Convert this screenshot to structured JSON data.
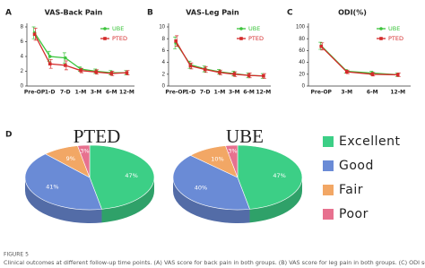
{
  "chart_data": [
    {
      "type": "line",
      "panel_label": "A",
      "title": "VAS-Back Pain",
      "categories": [
        "Pre-OP",
        "1-D",
        "7-D",
        "1-M",
        "3-M",
        "6-M",
        "12-M"
      ],
      "series": [
        {
          "name": "UBE",
          "color": "#3cc43c",
          "values": [
            7.2,
            4.0,
            3.8,
            2.3,
            2.0,
            1.8,
            1.8
          ],
          "errors": [
            0.8,
            0.7,
            0.7,
            0.3,
            0.3,
            0.3,
            0.3
          ]
        },
        {
          "name": "PTED",
          "color": "#d42a2a",
          "values": [
            7.0,
            3.0,
            2.8,
            2.1,
            1.9,
            1.7,
            1.8
          ],
          "errors": [
            0.8,
            0.6,
            0.6,
            0.3,
            0.3,
            0.3,
            0.3
          ]
        }
      ],
      "ylim": [
        0,
        8
      ],
      "yticks": [
        0,
        2,
        4,
        6,
        8
      ],
      "legend": "upper right"
    },
    {
      "type": "line",
      "panel_label": "B",
      "title": "VAS-Leg Pain",
      "categories": [
        "Pre-OP",
        "1-D",
        "7-D",
        "1-M",
        "3-M",
        "6-M",
        "12-M"
      ],
      "series": [
        {
          "name": "UBE",
          "color": "#3cc43c",
          "values": [
            7.3,
            3.6,
            2.9,
            2.4,
            2.1,
            1.8,
            1.7
          ],
          "errors": [
            1.0,
            0.6,
            0.5,
            0.4,
            0.4,
            0.4,
            0.4
          ]
        },
        {
          "name": "PTED",
          "color": "#d42a2a",
          "values": [
            7.6,
            3.4,
            2.8,
            2.3,
            2.0,
            1.8,
            1.7
          ],
          "errors": [
            0.9,
            0.5,
            0.5,
            0.4,
            0.4,
            0.4,
            0.4
          ]
        }
      ],
      "ylim": [
        0,
        10
      ],
      "yticks": [
        0,
        2,
        4,
        6,
        8,
        10
      ],
      "legend": "upper right"
    },
    {
      "type": "line",
      "panel_label": "C",
      "title": "ODI(%)",
      "categories": [
        "Pre-OP",
        "3-M",
        "6-M",
        "12-M"
      ],
      "series": [
        {
          "name": "UBE",
          "color": "#3cc43c",
          "values": [
            68,
            25,
            22,
            19
          ],
          "errors": [
            6,
            3,
            3,
            3
          ]
        },
        {
          "name": "PTED",
          "color": "#d42a2a",
          "values": [
            67,
            24,
            20,
            19
          ],
          "errors": [
            6,
            3,
            3,
            3
          ]
        }
      ],
      "ylim": [
        0,
        100
      ],
      "yticks": [
        0,
        20,
        40,
        60,
        80,
        100
      ],
      "legend": "upper right"
    },
    {
      "type": "pie",
      "panel_label": "D",
      "title": "PTED",
      "categories": [
        "Excellent",
        "Good",
        "Fair",
        "Poor"
      ],
      "colors": [
        "#3ccf86",
        "#6a8bd6",
        "#f2a765",
        "#e7718f"
      ],
      "values": [
        47,
        41,
        9,
        3
      ],
      "value_labels": [
        "47%",
        "41%",
        "9%",
        "3%"
      ],
      "legend": "right"
    },
    {
      "type": "pie",
      "title": "UBE",
      "categories": [
        "Excellent",
        "Good",
        "Fair",
        "Poor"
      ],
      "colors": [
        "#3ccf86",
        "#6a8bd6",
        "#f2a765",
        "#e7718f"
      ],
      "values": [
        47,
        40,
        10,
        3
      ],
      "value_labels": [
        "47%",
        "40%",
        "10%",
        "3%"
      ],
      "legend": "right"
    }
  ],
  "caption": {
    "label": "FIGURE 5",
    "text": "Clinical outcomes at different follow-up time points. (A) VAS score for back pain in both groups. (B) VAS score for leg pain in both groups. (C) ODI score fo"
  }
}
